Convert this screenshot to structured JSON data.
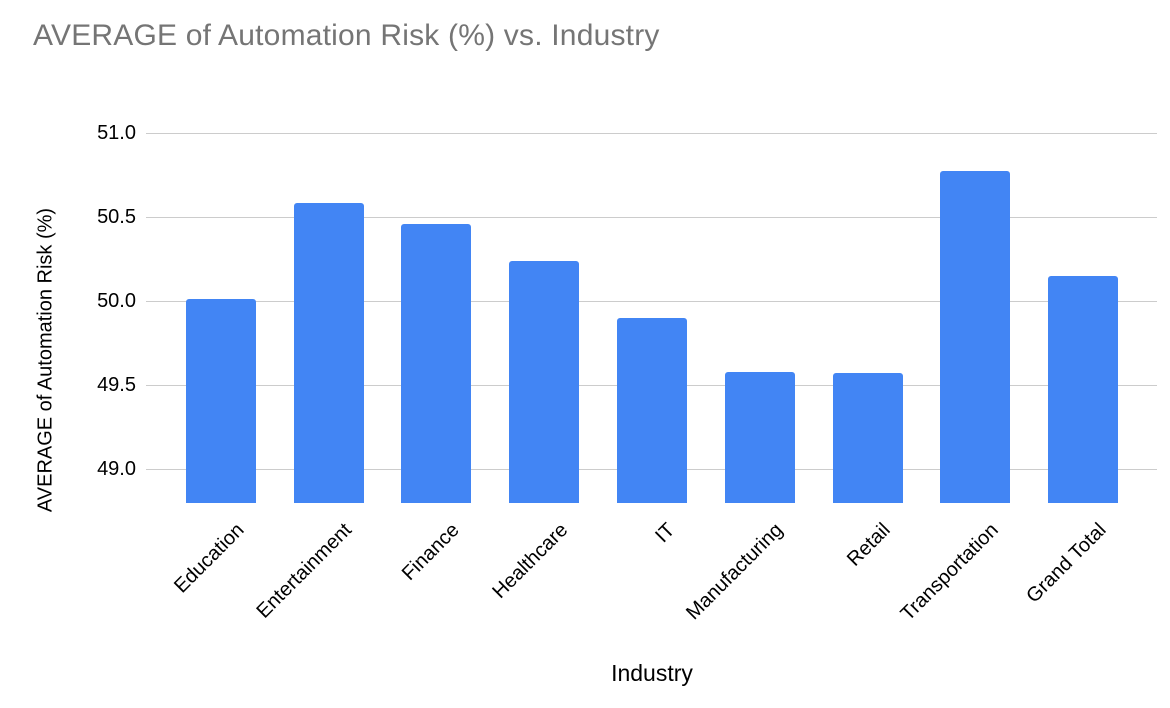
{
  "title": "AVERAGE of Automation Risk (%) vs. Industry",
  "colors": {
    "bar": "#4285f4",
    "gridline": "#cccccc",
    "title_text": "#757575",
    "axis_text": "#000000",
    "background": "#ffffff"
  },
  "chart_data": {
    "type": "bar",
    "title": "AVERAGE of Automation Risk (%) vs. Industry",
    "xlabel": "Industry",
    "ylabel": "AVERAGE of Automation Risk (%)",
    "categories": [
      "Education",
      "Entertainment",
      "Finance",
      "Healthcare",
      "IT",
      "Manufacturing",
      "Retail",
      "Transportation",
      "Grand Total"
    ],
    "values": [
      50.01,
      50.58,
      50.46,
      50.24,
      49.9,
      49.58,
      49.57,
      50.77,
      50.15
    ],
    "yticks": [
      49.0,
      49.5,
      50.0,
      50.5,
      51.0
    ],
    "ytick_labels": [
      "49.0",
      "49.5",
      "50.0",
      "50.5",
      "51.0"
    ],
    "ylim": [
      48.8,
      51.2
    ],
    "grid": true,
    "legend": "none",
    "bar_color": "#4285f4"
  }
}
